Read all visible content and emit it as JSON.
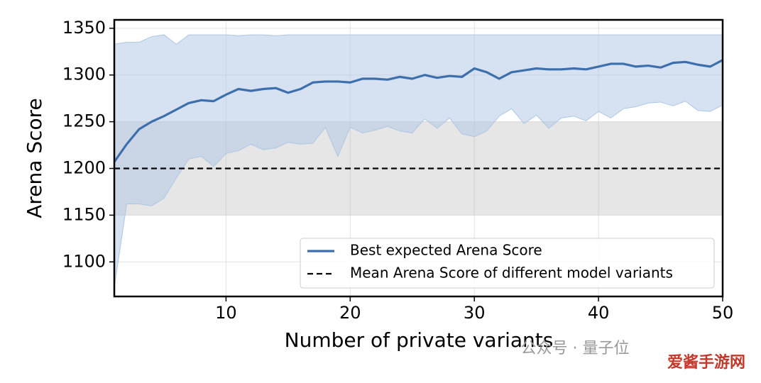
{
  "chart_data": {
    "type": "line",
    "xlabel": "Number of private variants",
    "ylabel": "Arena Score",
    "x": [
      1,
      2,
      3,
      4,
      5,
      6,
      7,
      8,
      9,
      10,
      11,
      12,
      13,
      14,
      15,
      16,
      17,
      18,
      19,
      20,
      21,
      22,
      23,
      24,
      25,
      26,
      27,
      28,
      29,
      30,
      31,
      32,
      33,
      34,
      35,
      36,
      37,
      38,
      39,
      40,
      41,
      42,
      43,
      44,
      45,
      46,
      47,
      48,
      49,
      50
    ],
    "series": [
      {
        "name": "Best expected Arena Score",
        "color": "#3d6fad",
        "values": [
          1207,
          1226,
          1242,
          1250,
          1256,
          1263,
          1270,
          1273,
          1272,
          1279,
          1285,
          1283,
          1285,
          1286,
          1281,
          1285,
          1292,
          1293,
          1293,
          1292,
          1296,
          1296,
          1295,
          1298,
          1296,
          1300,
          1297,
          1299,
          1298,
          1307,
          1303,
          1296,
          1303,
          1305,
          1307,
          1306,
          1306,
          1307,
          1306,
          1309,
          1312,
          1312,
          1309,
          1310,
          1308,
          1313,
          1314,
          1311,
          1309,
          1316
        ]
      }
    ],
    "band": {
      "color": "#aec6e3",
      "upper": [
        1333,
        1335,
        1335,
        1341,
        1343,
        1333,
        1343,
        1343,
        1343,
        1343,
        1342,
        1343,
        1343,
        1342,
        1343,
        1343,
        1343,
        1343,
        1343,
        1343,
        1343,
        1343,
        1343,
        1343,
        1343,
        1343,
        1343,
        1343,
        1343,
        1343,
        1343,
        1343,
        1343,
        1343,
        1343,
        1343,
        1343,
        1343,
        1343,
        1343,
        1343,
        1343,
        1343,
        1343,
        1343,
        1343,
        1343,
        1343,
        1343,
        1343
      ],
      "lower": [
        1073,
        1162,
        1162,
        1160,
        1168,
        1190,
        1210,
        1213,
        1202,
        1216,
        1219,
        1226,
        1220,
        1222,
        1228,
        1226,
        1227,
        1244,
        1213,
        1244,
        1238,
        1241,
        1245,
        1240,
        1238,
        1253,
        1243,
        1254,
        1237,
        1234,
        1240,
        1256,
        1264,
        1248,
        1257,
        1243,
        1254,
        1256,
        1251,
        1261,
        1254,
        1264,
        1266,
        1270,
        1271,
        1267,
        1272,
        1262,
        1261,
        1268
      ]
    },
    "reference_band": {
      "range": [
        1150,
        1250
      ],
      "color": "#e6e6e6"
    },
    "reference_line": {
      "name": "Mean Arena Score of different model variants",
      "value": 1200,
      "color": "#000000"
    },
    "xlim": [
      1,
      50
    ],
    "xticks": [
      10,
      20,
      30,
      40,
      50
    ],
    "ylim": [
      1063,
      1359
    ],
    "yticks": [
      1100,
      1150,
      1200,
      1250,
      1300,
      1350
    ],
    "grid": true,
    "legend": "lower right",
    "watermark": [
      "公众号 · 量子位",
      "爱酱手游网"
    ]
  }
}
